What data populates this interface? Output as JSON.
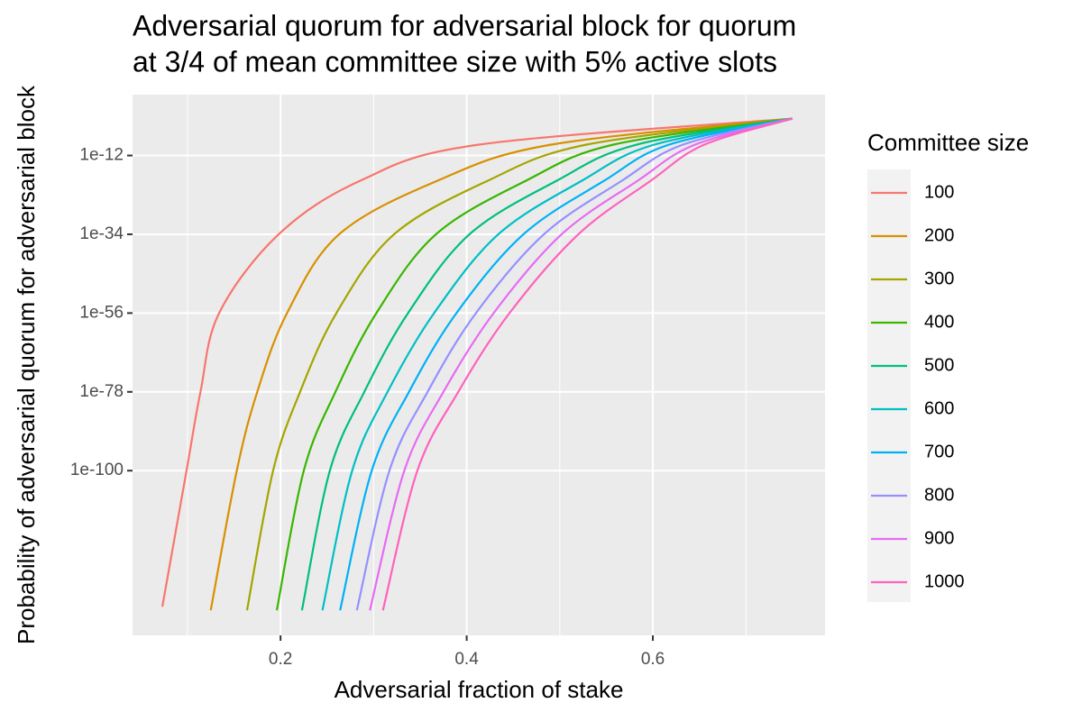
{
  "chart_data": {
    "type": "line",
    "title": [
      "Adversarial quorum for adversarial block for quorum",
      "at 3/4 of mean committee size with 5% active slots"
    ],
    "x_label": "Adversarial fraction of stake",
    "y_label": "Probability of adversarial quorum for adversarial block",
    "legend_title": "Committee size",
    "legend_position": "right",
    "y_scale": "log",
    "grid": true,
    "xlim": [
      0.041,
      0.785
    ],
    "ylim": [
      1e-146,
      100000.0
    ],
    "xticks": [
      0.2,
      0.4,
      0.6
    ],
    "yticks": [
      {
        "value": 1e-12,
        "label": "1e-12"
      },
      {
        "value": 1e-34,
        "label": "1e-34"
      },
      {
        "value": 1e-56,
        "label": "1e-56"
      },
      {
        "value": 1e-78,
        "label": "1e-78"
      },
      {
        "value": 1e-100,
        "label": "1e-100"
      }
    ],
    "series": [
      {
        "name": "100",
        "color": "#F8766D",
        "x": [
          0.073,
          0.099,
          0.114,
          0.134,
          0.198,
          0.286,
          0.412,
          0.75
        ],
        "values": [
          1e-138,
          1e-100,
          1e-78,
          1e-56,
          1e-34,
          1e-19,
          1e-09,
          0.02
        ]
      },
      {
        "name": "200",
        "color": "#D89000",
        "x": [
          0.125,
          0.153,
          0.175,
          0.207,
          0.263,
          0.369,
          0.49,
          0.75
        ],
        "values": [
          1e-139,
          1e-100,
          1e-78,
          1e-56,
          1e-34,
          1e-19,
          1e-09,
          0.02
        ]
      },
      {
        "name": "300",
        "color": "#A3A500",
        "x": [
          0.164,
          0.192,
          0.221,
          0.26,
          0.322,
          0.423,
          0.528,
          0.75
        ],
        "values": [
          1e-139,
          1e-100,
          1e-78,
          1e-56,
          1e-34,
          1e-19,
          1e-09,
          0.02
        ]
      },
      {
        "name": "400",
        "color": "#39B600",
        "x": [
          0.196,
          0.225,
          0.259,
          0.303,
          0.367,
          0.464,
          0.557,
          0.75
        ],
        "values": [
          1e-139,
          1e-100,
          1e-78,
          1e-56,
          1e-34,
          1e-19,
          1e-09,
          0.02
        ]
      },
      {
        "name": "500",
        "color": "#00BF7D",
        "x": [
          0.223,
          0.253,
          0.29,
          0.337,
          0.403,
          0.497,
          0.582,
          0.75
        ],
        "values": [
          1e-139,
          1e-100,
          1e-78,
          1e-56,
          1e-34,
          1e-19,
          1e-09,
          0.02
        ]
      },
      {
        "name": "600",
        "color": "#00BFC4",
        "x": [
          0.245,
          0.277,
          0.315,
          0.365,
          0.434,
          0.524,
          0.601,
          0.75
        ],
        "values": [
          1e-139,
          1e-100,
          1e-78,
          1e-56,
          1e-34,
          1e-19,
          1e-09,
          0.02
        ]
      },
      {
        "name": "700",
        "color": "#00B0F6",
        "x": [
          0.264,
          0.298,
          0.338,
          0.389,
          0.461,
          0.548,
          0.617,
          0.75
        ],
        "values": [
          1e-139,
          1e-100,
          1e-78,
          1e-56,
          1e-34,
          1e-19,
          1e-09,
          0.02
        ]
      },
      {
        "name": "800",
        "color": "#9590FF",
        "x": [
          0.282,
          0.317,
          0.358,
          0.41,
          0.483,
          0.567,
          0.632,
          0.75
        ],
        "values": [
          1e-139,
          1e-100,
          1e-78,
          1e-56,
          1e-34,
          1e-19,
          1e-09,
          0.02
        ]
      },
      {
        "name": "900",
        "color": "#E76BF3",
        "x": [
          0.296,
          0.333,
          0.375,
          0.429,
          0.502,
          0.584,
          0.645,
          0.75
        ],
        "values": [
          1e-139,
          1e-100,
          1e-78,
          1e-56,
          1e-34,
          1e-19,
          1e-09,
          0.02
        ]
      },
      {
        "name": "1000",
        "color": "#FF62BC",
        "x": [
          0.31,
          0.347,
          0.391,
          0.446,
          0.52,
          0.598,
          0.655,
          0.75
        ],
        "values": [
          1e-139,
          1e-100,
          1e-78,
          1e-56,
          1e-34,
          1e-19,
          1e-09,
          0.02
        ]
      }
    ]
  }
}
